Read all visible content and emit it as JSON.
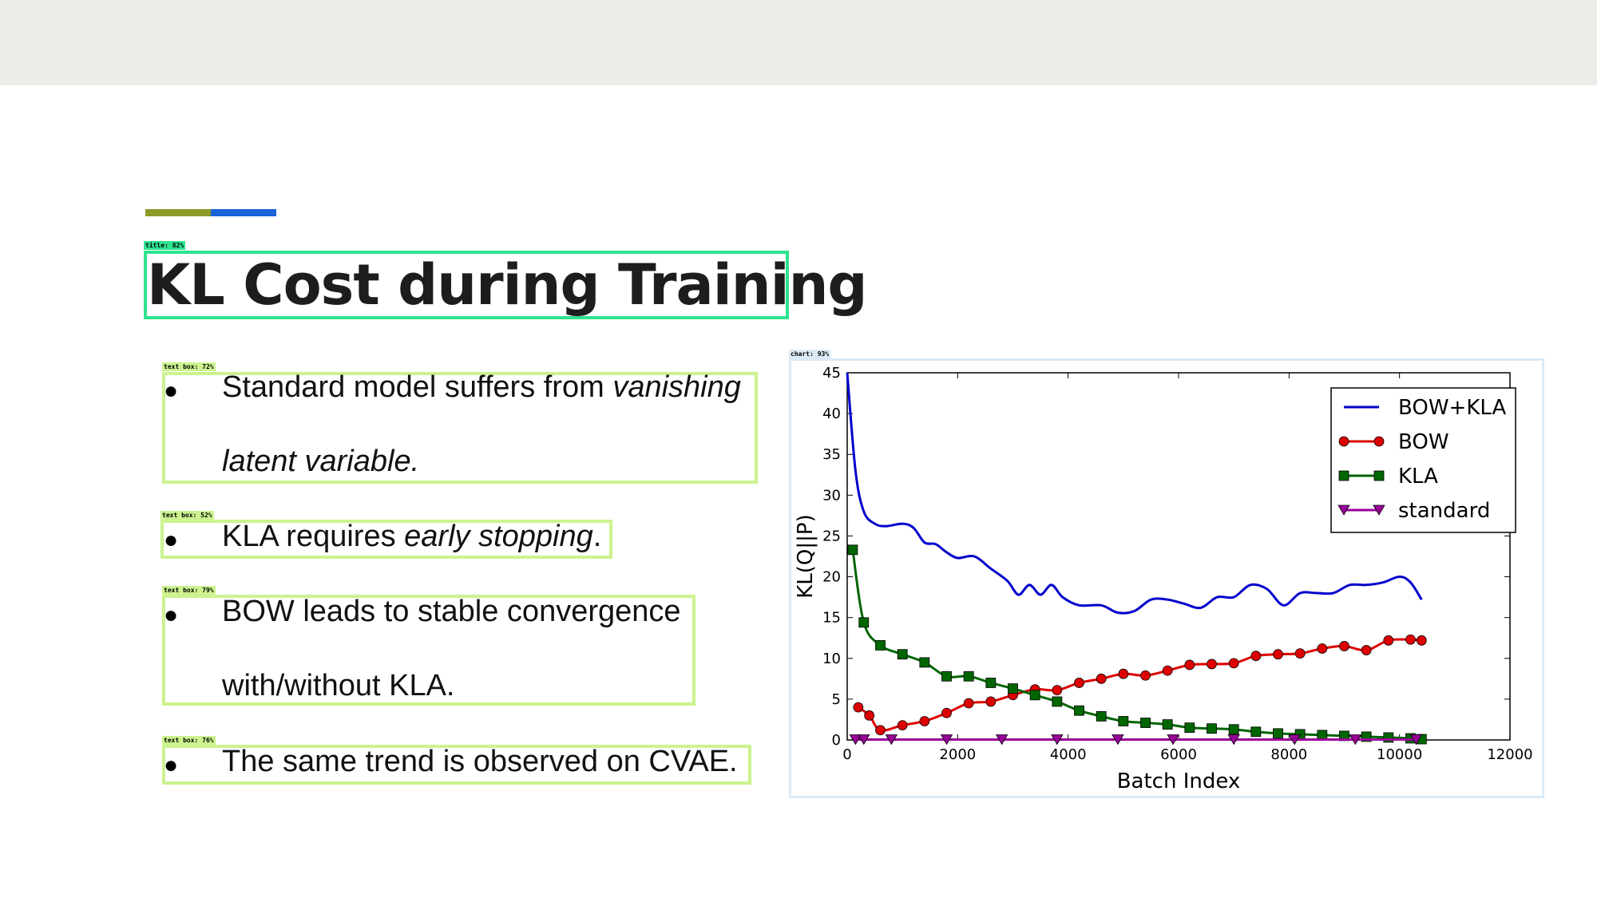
{
  "slide": {
    "title": "KL Cost during Training",
    "accent_colors": [
      "#8e9a2a",
      "#1a63d9"
    ],
    "bullets": [
      {
        "dot": "●",
        "line1_plain": "Standard model suffers from ",
        "line1_italic": "vanishing",
        "line2_italic": "latent variable."
      },
      {
        "dot": "●",
        "plain": "KLA requires ",
        "italic": "early stopping",
        "tail": "."
      },
      {
        "dot": "●",
        "line1": "BOW leads to stable convergence",
        "line2": "with/without KLA."
      },
      {
        "dot": "●",
        "plain": "The same trend is observed on CVAE."
      }
    ]
  },
  "detections": {
    "title_tag": "title: 82%",
    "text_tags": [
      "text box: 72%",
      "text box: 52%",
      "text box: 79%",
      "text box: 76%"
    ],
    "chart_tag": "chart: 93%",
    "colors": {
      "title": "#2de38e",
      "text": "#ccf38f",
      "chart": "#dcebf6"
    }
  },
  "chart_data": {
    "type": "line",
    "xlabel": "Batch Index",
    "ylabel": "KL(Q||P)",
    "xlim": [
      0,
      12000
    ],
    "ylim": [
      0,
      45
    ],
    "xticks": [
      "0",
      "2000",
      "4000",
      "6000",
      "8000",
      "10000",
      "12000"
    ],
    "yticks": [
      "0",
      "5",
      "10",
      "15",
      "20",
      "25",
      "30",
      "35",
      "40",
      "45"
    ],
    "legend_position": "top-right",
    "series": [
      {
        "name": "BOW+KLA",
        "color": "#0000cc",
        "marker": "none",
        "x": [
          0,
          150,
          300,
          500,
          700,
          1000,
          1200,
          1400,
          1600,
          1800,
          2000,
          2300,
          2600,
          2900,
          3100,
          3300,
          3500,
          3700,
          3900,
          4200,
          4600,
          4900,
          5200,
          5500,
          5800,
          6100,
          6400,
          6700,
          7000,
          7300,
          7600,
          7900,
          8200,
          8500,
          8800,
          9100,
          9400,
          9700,
          10000,
          10200,
          10400
        ],
        "y": [
          45,
          33,
          28,
          26.5,
          26.2,
          26.5,
          26,
          24.2,
          24,
          23,
          22.3,
          22.5,
          21,
          19.5,
          17.8,
          19,
          17.8,
          19,
          17.5,
          16.5,
          16.5,
          15.6,
          15.8,
          17.2,
          17.2,
          16.7,
          16.2,
          17.5,
          17.5,
          19,
          18.5,
          16.5,
          18,
          18,
          18,
          19,
          19,
          19.3,
          20,
          19.3,
          17.2
        ]
      },
      {
        "name": "BOW",
        "color": "#dd0000",
        "marker": "circle",
        "x": [
          200,
          400,
          600,
          1000,
          1400,
          1800,
          2200,
          2600,
          3000,
          3400,
          3800,
          4200,
          4600,
          5000,
          5400,
          5800,
          6200,
          6600,
          7000,
          7400,
          7800,
          8200,
          8600,
          9000,
          9400,
          9800,
          10200,
          10400
        ],
        "y": [
          4,
          3,
          1.2,
          1.8,
          2.3,
          3.3,
          4.5,
          4.7,
          5.5,
          6.2,
          6.1,
          7,
          7.5,
          8.1,
          7.9,
          8.5,
          9.2,
          9.3,
          9.4,
          10.3,
          10.5,
          10.6,
          11.2,
          11.5,
          11,
          12.2,
          12.3,
          12.2
        ]
      },
      {
        "name": "KLA",
        "color": "#006600",
        "marker": "square",
        "x": [
          100,
          300,
          600,
          1000,
          1400,
          1800,
          2200,
          2600,
          3000,
          3400,
          3800,
          4200,
          4600,
          5000,
          5400,
          5800,
          6200,
          6600,
          7000,
          7400,
          7800,
          8200,
          8600,
          9000,
          9400,
          9800,
          10200,
          10400
        ],
        "y": [
          23.3,
          14.4,
          11.6,
          10.5,
          9.5,
          7.8,
          7.8,
          7,
          6.3,
          5.5,
          4.7,
          3.6,
          2.9,
          2.3,
          2.1,
          1.9,
          1.5,
          1.4,
          1.3,
          1.0,
          0.8,
          0.7,
          0.6,
          0.5,
          0.4,
          0.3,
          0.2,
          0.1
        ]
      },
      {
        "name": "standard",
        "color": "#990099",
        "marker": "triangle-down",
        "x": [
          150,
          300,
          800,
          1800,
          2800,
          3800,
          4900,
          5900,
          7000,
          8100,
          9200,
          10300
        ],
        "y": [
          0.05,
          0.05,
          0.05,
          0.05,
          0.05,
          0.05,
          0.05,
          0.05,
          0.05,
          0.05,
          0.05,
          0.05
        ]
      }
    ]
  }
}
